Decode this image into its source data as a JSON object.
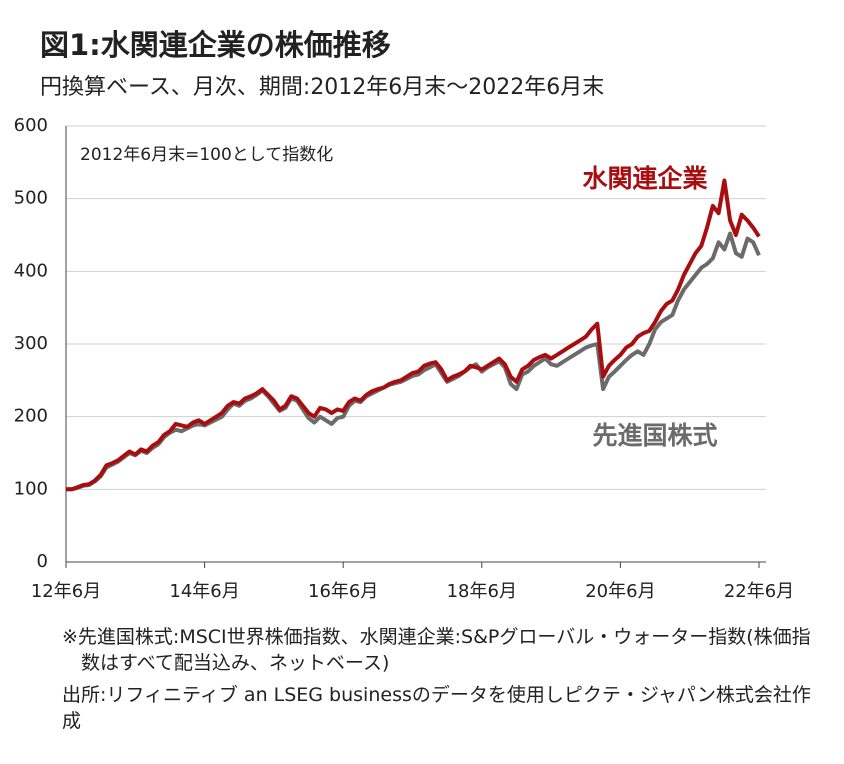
{
  "chart_data": {
    "type": "line",
    "title": "図1:水関連企業の株価推移",
    "subtitle": "円換算ベース、月次、期間:2012年6月末～2022年6月末",
    "annotation": "2012年6月末=100として指数化",
    "categories": [
      "12年6月",
      null,
      null,
      null,
      null,
      null,
      null,
      null,
      null,
      null,
      null,
      null,
      null,
      null,
      null,
      null,
      null,
      null,
      null,
      null,
      null,
      null,
      null,
      null,
      "14年6月",
      null,
      null,
      null,
      null,
      null,
      null,
      null,
      null,
      null,
      null,
      null,
      null,
      null,
      null,
      null,
      null,
      null,
      null,
      null,
      null,
      null,
      null,
      null,
      "16年6月",
      null,
      null,
      null,
      null,
      null,
      null,
      null,
      null,
      null,
      null,
      null,
      null,
      null,
      null,
      null,
      null,
      null,
      null,
      null,
      null,
      null,
      null,
      null,
      "18年6月",
      null,
      null,
      null,
      null,
      null,
      null,
      null,
      null,
      null,
      null,
      null,
      null,
      null,
      null,
      null,
      null,
      null,
      null,
      null,
      null,
      null,
      null,
      null,
      "20年6月",
      null,
      null,
      null,
      null,
      null,
      null,
      null,
      null,
      null,
      null,
      null,
      null,
      null,
      null,
      null,
      null,
      null,
      null,
      null,
      null,
      null,
      null,
      null,
      "22年6月"
    ],
    "series": [
      {
        "name": "水関連企業",
        "color": "#a80d10",
        "values": [
          100,
          100,
          103,
          106,
          107,
          112,
          120,
          133,
          136,
          140,
          146,
          152,
          148,
          155,
          152,
          160,
          165,
          175,
          180,
          190,
          188,
          186,
          192,
          195,
          190,
          195,
          200,
          205,
          215,
          220,
          218,
          225,
          228,
          232,
          238,
          230,
          222,
          210,
          215,
          228,
          225,
          215,
          205,
          200,
          212,
          210,
          205,
          210,
          208,
          220,
          225,
          222,
          230,
          235,
          238,
          240,
          245,
          248,
          250,
          255,
          260,
          262,
          270,
          273,
          275,
          265,
          250,
          255,
          258,
          262,
          270,
          268,
          265,
          270,
          275,
          280,
          272,
          255,
          248,
          265,
          270,
          278,
          282,
          285,
          280,
          285,
          290,
          295,
          300,
          305,
          310,
          320,
          328,
          255,
          270,
          278,
          285,
          295,
          300,
          310,
          315,
          318,
          330,
          345,
          355,
          360,
          375,
          395,
          410,
          425,
          435,
          460,
          490,
          480,
          525,
          470,
          450,
          478,
          470,
          460,
          448
        ]
      },
      {
        "name": "先進国株式",
        "color": "#6b6b6b",
        "values": [
          100,
          100,
          102,
          105,
          106,
          111,
          118,
          130,
          134,
          138,
          144,
          150,
          147,
          153,
          150,
          157,
          162,
          172,
          178,
          182,
          180,
          184,
          188,
          190,
          188,
          192,
          196,
          200,
          210,
          218,
          215,
          222,
          225,
          230,
          236,
          228,
          218,
          208,
          212,
          225,
          222,
          210,
          198,
          192,
          200,
          195,
          190,
          198,
          200,
          215,
          222,
          220,
          228,
          232,
          236,
          240,
          244,
          246,
          248,
          252,
          256,
          258,
          264,
          268,
          272,
          260,
          248,
          252,
          256,
          262,
          268,
          272,
          262,
          268,
          272,
          276,
          268,
          245,
          238,
          258,
          262,
          270,
          275,
          280,
          272,
          270,
          275,
          280,
          285,
          290,
          295,
          298,
          300,
          238,
          255,
          262,
          270,
          278,
          285,
          290,
          285,
          300,
          320,
          330,
          335,
          340,
          360,
          375,
          385,
          395,
          405,
          410,
          418,
          440,
          430,
          452,
          425,
          420,
          445,
          440,
          422
        ]
      }
    ],
    "ylim": [
      0,
      600
    ],
    "yticks": [
      0,
      100,
      200,
      300,
      400,
      500,
      600
    ],
    "grid": true,
    "notes": [
      "※先進国株式:MSCI世界株価指数、水関連企業:S&Pグローバル・ウォーター指数(株価指数はすべて配当込み、ネットベース)",
      "出所:リフィニティブ an LSEG businessのデータを使用しピクテ・ジャパン株式会社作成"
    ]
  }
}
